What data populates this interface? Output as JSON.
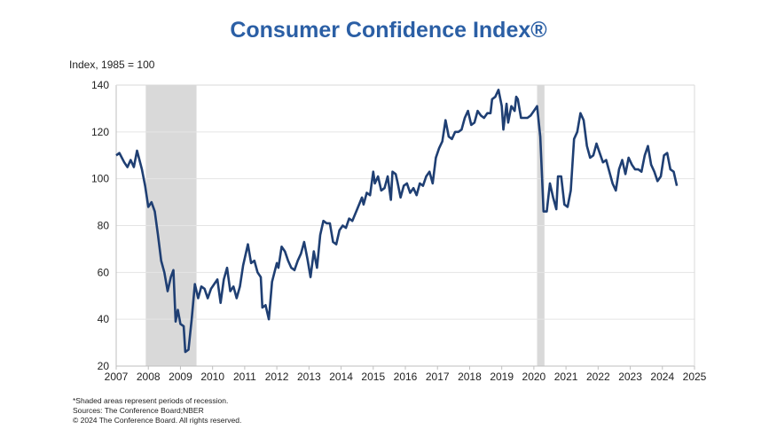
{
  "chart_data": {
    "type": "line",
    "title": "Consumer Confidence Index®",
    "ylabel": "Index, 1985 = 100",
    "xlim": [
      2007,
      2025
    ],
    "ylim": [
      20,
      140
    ],
    "xticks": [
      "2007",
      "2008",
      "2009",
      "2010",
      "2011",
      "2012",
      "2013",
      "2014",
      "2015",
      "2016",
      "2017",
      "2018",
      "2019",
      "2020",
      "2021",
      "2022",
      "2023",
      "2024",
      "2025"
    ],
    "yticks": [
      "20",
      "40",
      "60",
      "80",
      "100",
      "120",
      "140"
    ],
    "grid": true,
    "line_color": "#1f3f73",
    "recession_color": "#d9d9d9",
    "recessions": [
      [
        2007.92,
        2009.5
      ],
      [
        2020.1,
        2020.33
      ]
    ],
    "series": [
      {
        "points": [
          [
            2007.0,
            110
          ],
          [
            2007.1,
            111
          ],
          [
            2007.25,
            107
          ],
          [
            2007.35,
            105
          ],
          [
            2007.45,
            108
          ],
          [
            2007.55,
            105
          ],
          [
            2007.65,
            112
          ],
          [
            2007.8,
            104
          ],
          [
            2007.9,
            97
          ],
          [
            2008.0,
            88
          ],
          [
            2008.1,
            90
          ],
          [
            2008.2,
            86
          ],
          [
            2008.3,
            76
          ],
          [
            2008.4,
            65
          ],
          [
            2008.5,
            60
          ],
          [
            2008.6,
            52
          ],
          [
            2008.7,
            58
          ],
          [
            2008.78,
            61
          ],
          [
            2008.85,
            39
          ],
          [
            2008.92,
            44
          ],
          [
            2009.0,
            38
          ],
          [
            2009.1,
            37
          ],
          [
            2009.15,
            26
          ],
          [
            2009.25,
            27
          ],
          [
            2009.35,
            40
          ],
          [
            2009.45,
            55
          ],
          [
            2009.55,
            49
          ],
          [
            2009.65,
            54
          ],
          [
            2009.75,
            53
          ],
          [
            2009.85,
            49
          ],
          [
            2009.95,
            53
          ],
          [
            2010.05,
            55
          ],
          [
            2010.15,
            57
          ],
          [
            2010.25,
            47
          ],
          [
            2010.35,
            57
          ],
          [
            2010.45,
            62
          ],
          [
            2010.55,
            52
          ],
          [
            2010.65,
            54
          ],
          [
            2010.75,
            49
          ],
          [
            2010.85,
            54
          ],
          [
            2010.95,
            63
          ],
          [
            2011.1,
            72
          ],
          [
            2011.2,
            64
          ],
          [
            2011.3,
            65
          ],
          [
            2011.4,
            60
          ],
          [
            2011.5,
            58
          ],
          [
            2011.55,
            45
          ],
          [
            2011.65,
            46
          ],
          [
            2011.75,
            40
          ],
          [
            2011.85,
            56
          ],
          [
            2012.0,
            64
          ],
          [
            2012.05,
            62
          ],
          [
            2012.15,
            71
          ],
          [
            2012.25,
            69
          ],
          [
            2012.35,
            65
          ],
          [
            2012.45,
            62
          ],
          [
            2012.55,
            61
          ],
          [
            2012.65,
            65
          ],
          [
            2012.75,
            68
          ],
          [
            2012.85,
            73
          ],
          [
            2012.95,
            66
          ],
          [
            2013.05,
            58
          ],
          [
            2013.15,
            69
          ],
          [
            2013.25,
            62
          ],
          [
            2013.35,
            76
          ],
          [
            2013.45,
            82
          ],
          [
            2013.55,
            81
          ],
          [
            2013.65,
            81
          ],
          [
            2013.75,
            73
          ],
          [
            2013.85,
            72
          ],
          [
            2013.95,
            78
          ],
          [
            2014.05,
            80
          ],
          [
            2014.15,
            79
          ],
          [
            2014.25,
            83
          ],
          [
            2014.35,
            82
          ],
          [
            2014.5,
            87
          ],
          [
            2014.65,
            92
          ],
          [
            2014.7,
            89
          ],
          [
            2014.8,
            94
          ],
          [
            2014.9,
            93
          ],
          [
            2015.0,
            103
          ],
          [
            2015.05,
            98
          ],
          [
            2015.15,
            101
          ],
          [
            2015.25,
            95
          ],
          [
            2015.35,
            96
          ],
          [
            2015.45,
            101
          ],
          [
            2015.55,
            91
          ],
          [
            2015.6,
            103
          ],
          [
            2015.7,
            102
          ],
          [
            2015.75,
            99
          ],
          [
            2015.85,
            92
          ],
          [
            2015.95,
            97
          ],
          [
            2016.05,
            98
          ],
          [
            2016.15,
            94
          ],
          [
            2016.25,
            96
          ],
          [
            2016.35,
            93
          ],
          [
            2016.45,
            98
          ],
          [
            2016.55,
            97
          ],
          [
            2016.65,
            101
          ],
          [
            2016.75,
            103
          ],
          [
            2016.85,
            98
          ],
          [
            2016.95,
            109
          ],
          [
            2017.05,
            113
          ],
          [
            2017.15,
            116
          ],
          [
            2017.25,
            125
          ],
          [
            2017.35,
            118
          ],
          [
            2017.45,
            117
          ],
          [
            2017.55,
            120
          ],
          [
            2017.65,
            120
          ],
          [
            2017.75,
            121
          ],
          [
            2017.85,
            126
          ],
          [
            2017.95,
            129
          ],
          [
            2018.05,
            123
          ],
          [
            2018.15,
            124
          ],
          [
            2018.25,
            129
          ],
          [
            2018.35,
            127
          ],
          [
            2018.45,
            126
          ],
          [
            2018.55,
            128
          ],
          [
            2018.65,
            128
          ],
          [
            2018.7,
            134
          ],
          [
            2018.8,
            135
          ],
          [
            2018.9,
            138
          ],
          [
            2019.0,
            131
          ],
          [
            2019.05,
            121
          ],
          [
            2019.15,
            132
          ],
          [
            2019.2,
            124
          ],
          [
            2019.3,
            131
          ],
          [
            2019.4,
            129
          ],
          [
            2019.45,
            135
          ],
          [
            2019.5,
            134
          ],
          [
            2019.6,
            126
          ],
          [
            2019.7,
            126
          ],
          [
            2019.8,
            126
          ],
          [
            2019.9,
            127
          ],
          [
            2020.0,
            129
          ],
          [
            2020.1,
            131
          ],
          [
            2020.2,
            118
          ],
          [
            2020.3,
            86
          ],
          [
            2020.4,
            86
          ],
          [
            2020.5,
            98
          ],
          [
            2020.6,
            92
          ],
          [
            2020.7,
            87
          ],
          [
            2020.75,
            101
          ],
          [
            2020.85,
            101
          ],
          [
            2020.95,
            89
          ],
          [
            2021.05,
            88
          ],
          [
            2021.15,
            95
          ],
          [
            2021.25,
            117
          ],
          [
            2021.35,
            120
          ],
          [
            2021.45,
            128
          ],
          [
            2021.55,
            125
          ],
          [
            2021.65,
            114
          ],
          [
            2021.75,
            109
          ],
          [
            2021.85,
            110
          ],
          [
            2021.95,
            115
          ],
          [
            2022.05,
            111
          ],
          [
            2022.15,
            107
          ],
          [
            2022.25,
            108
          ],
          [
            2022.35,
            103
          ],
          [
            2022.45,
            98
          ],
          [
            2022.55,
            95
          ],
          [
            2022.65,
            104
          ],
          [
            2022.75,
            108
          ],
          [
            2022.85,
            102
          ],
          [
            2022.95,
            109
          ],
          [
            2023.05,
            106
          ],
          [
            2023.15,
            104
          ],
          [
            2023.25,
            104
          ],
          [
            2023.35,
            103
          ],
          [
            2023.45,
            110
          ],
          [
            2023.55,
            114
          ],
          [
            2023.65,
            106
          ],
          [
            2023.75,
            103
          ],
          [
            2023.85,
            99
          ],
          [
            2023.95,
            101
          ],
          [
            2024.05,
            110
          ],
          [
            2024.15,
            111
          ],
          [
            2024.25,
            104
          ],
          [
            2024.35,
            103
          ],
          [
            2024.45,
            97
          ]
        ]
      }
    ]
  },
  "notes": [
    "*Shaded areas represent periods of recession.",
    "Sources: The Conference Board;NBER",
    "© 2024 The Conference Board. All rights reserved."
  ]
}
